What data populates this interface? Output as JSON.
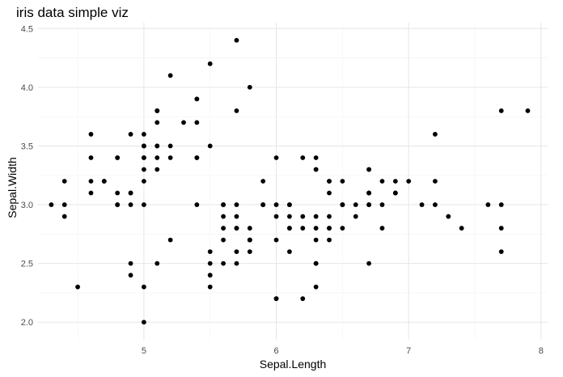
{
  "chart_data": {
    "type": "scatter",
    "title": "iris data simple viz",
    "xlabel": "Sepal.Length",
    "ylabel": "Sepal.Width",
    "xlim": [
      4.2,
      8.05
    ],
    "ylim": [
      1.85,
      4.55
    ],
    "xticks": [
      5,
      6,
      7,
      8
    ],
    "yticks": [
      2.0,
      2.5,
      3.0,
      3.5,
      4.0,
      4.5
    ],
    "xtick_labels": [
      "5",
      "6",
      "7",
      "8"
    ],
    "ytick_labels": [
      "2.0",
      "2.5",
      "3.0",
      "3.5",
      "4.0",
      "4.5"
    ],
    "grid": true,
    "point_color": "#000000",
    "points": [
      [
        5.1,
        3.5
      ],
      [
        4.9,
        3.0
      ],
      [
        4.7,
        3.2
      ],
      [
        4.6,
        3.1
      ],
      [
        5.0,
        3.6
      ],
      [
        5.4,
        3.9
      ],
      [
        4.6,
        3.4
      ],
      [
        5.0,
        3.4
      ],
      [
        4.4,
        2.9
      ],
      [
        4.9,
        3.1
      ],
      [
        5.4,
        3.7
      ],
      [
        4.8,
        3.4
      ],
      [
        4.8,
        3.0
      ],
      [
        4.3,
        3.0
      ],
      [
        5.8,
        4.0
      ],
      [
        5.7,
        4.4
      ],
      [
        5.4,
        3.9
      ],
      [
        5.1,
        3.5
      ],
      [
        5.7,
        3.8
      ],
      [
        5.1,
        3.8
      ],
      [
        5.4,
        3.4
      ],
      [
        5.1,
        3.7
      ],
      [
        4.6,
        3.6
      ],
      [
        5.1,
        3.3
      ],
      [
        4.8,
        3.4
      ],
      [
        5.0,
        3.0
      ],
      [
        5.0,
        3.4
      ],
      [
        5.2,
        3.5
      ],
      [
        5.2,
        3.4
      ],
      [
        4.7,
        3.2
      ],
      [
        4.8,
        3.1
      ],
      [
        5.4,
        3.4
      ],
      [
        5.2,
        4.1
      ],
      [
        5.5,
        4.2
      ],
      [
        4.9,
        3.1
      ],
      [
        5.0,
        3.2
      ],
      [
        5.5,
        3.5
      ],
      [
        4.9,
        3.6
      ],
      [
        4.4,
        3.0
      ],
      [
        5.1,
        3.4
      ],
      [
        5.0,
        3.5
      ],
      [
        4.5,
        2.3
      ],
      [
        4.4,
        3.2
      ],
      [
        5.0,
        3.5
      ],
      [
        5.1,
        3.8
      ],
      [
        4.8,
        3.0
      ],
      [
        5.1,
        3.8
      ],
      [
        4.6,
        3.2
      ],
      [
        5.3,
        3.7
      ],
      [
        5.0,
        3.3
      ],
      [
        7.0,
        3.2
      ],
      [
        6.4,
        3.2
      ],
      [
        6.9,
        3.1
      ],
      [
        5.5,
        2.3
      ],
      [
        6.5,
        2.8
      ],
      [
        5.7,
        2.8
      ],
      [
        6.3,
        3.3
      ],
      [
        4.9,
        2.4
      ],
      [
        6.6,
        2.9
      ],
      [
        5.2,
        2.7
      ],
      [
        5.0,
        2.0
      ],
      [
        5.9,
        3.0
      ],
      [
        6.0,
        2.2
      ],
      [
        6.1,
        2.9
      ],
      [
        5.6,
        2.9
      ],
      [
        6.7,
        3.1
      ],
      [
        5.6,
        3.0
      ],
      [
        5.8,
        2.7
      ],
      [
        6.2,
        2.2
      ],
      [
        5.6,
        2.5
      ],
      [
        5.9,
        3.2
      ],
      [
        6.1,
        2.8
      ],
      [
        6.3,
        2.5
      ],
      [
        6.1,
        2.8
      ],
      [
        6.4,
        2.9
      ],
      [
        6.6,
        3.0
      ],
      [
        6.8,
        2.8
      ],
      [
        6.7,
        3.0
      ],
      [
        6.0,
        2.9
      ],
      [
        5.7,
        2.6
      ],
      [
        5.5,
        2.4
      ],
      [
        5.5,
        2.4
      ],
      [
        5.8,
        2.7
      ],
      [
        6.0,
        2.7
      ],
      [
        5.4,
        3.0
      ],
      [
        6.0,
        3.4
      ],
      [
        6.7,
        3.1
      ],
      [
        6.3,
        2.3
      ],
      [
        5.6,
        3.0
      ],
      [
        5.5,
        2.5
      ],
      [
        5.5,
        2.6
      ],
      [
        6.1,
        3.0
      ],
      [
        5.8,
        2.6
      ],
      [
        5.0,
        2.3
      ],
      [
        5.6,
        2.7
      ],
      [
        5.7,
        3.0
      ],
      [
        5.7,
        2.9
      ],
      [
        6.2,
        2.9
      ],
      [
        5.1,
        2.5
      ],
      [
        5.7,
        2.8
      ],
      [
        6.3,
        3.3
      ],
      [
        5.8,
        2.7
      ],
      [
        7.1,
        3.0
      ],
      [
        6.3,
        2.9
      ],
      [
        6.5,
        3.0
      ],
      [
        7.6,
        3.0
      ],
      [
        4.9,
        2.5
      ],
      [
        7.3,
        2.9
      ],
      [
        6.7,
        2.5
      ],
      [
        7.2,
        3.6
      ],
      [
        6.5,
        3.2
      ],
      [
        6.4,
        2.7
      ],
      [
        6.8,
        3.0
      ],
      [
        5.7,
        2.5
      ],
      [
        5.8,
        2.8
      ],
      [
        6.4,
        3.2
      ],
      [
        6.5,
        3.0
      ],
      [
        7.7,
        3.8
      ],
      [
        7.7,
        2.6
      ],
      [
        6.0,
        2.2
      ],
      [
        6.9,
        3.2
      ],
      [
        5.6,
        2.8
      ],
      [
        7.7,
        2.8
      ],
      [
        6.3,
        2.7
      ],
      [
        6.7,
        3.3
      ],
      [
        7.2,
        3.2
      ],
      [
        6.2,
        2.8
      ],
      [
        6.1,
        3.0
      ],
      [
        6.4,
        2.8
      ],
      [
        7.2,
        3.0
      ],
      [
        7.4,
        2.8
      ],
      [
        7.9,
        3.8
      ],
      [
        6.4,
        2.8
      ],
      [
        6.3,
        2.8
      ],
      [
        6.1,
        2.6
      ],
      [
        7.7,
        3.0
      ],
      [
        6.3,
        3.4
      ],
      [
        6.4,
        3.1
      ],
      [
        6.0,
        3.0
      ],
      [
        6.9,
        3.1
      ],
      [
        6.7,
        3.1
      ],
      [
        6.9,
        3.1
      ],
      [
        5.8,
        2.7
      ],
      [
        6.8,
        3.2
      ],
      [
        6.7,
        3.3
      ],
      [
        6.7,
        3.0
      ],
      [
        6.3,
        2.5
      ],
      [
        6.5,
        3.0
      ],
      [
        6.2,
        3.4
      ],
      [
        5.9,
        3.0
      ]
    ]
  }
}
